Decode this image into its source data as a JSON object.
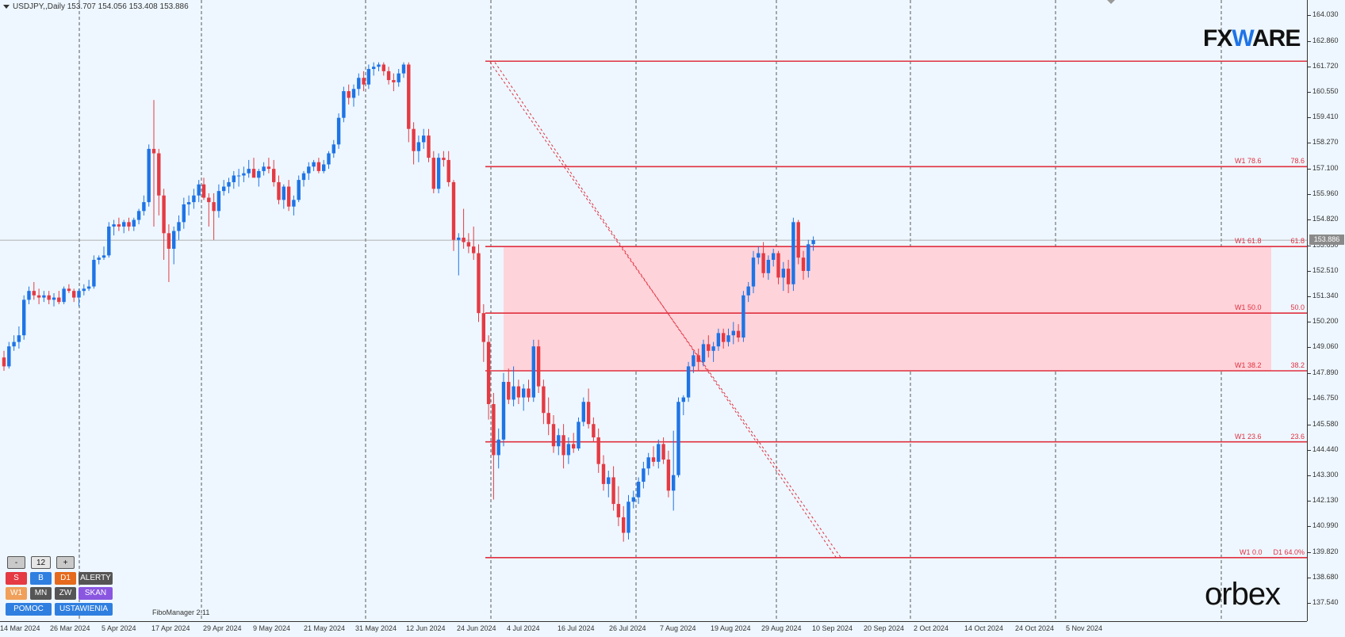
{
  "header": {
    "symbol_info": "USDJPY,,Daily  153.707 154.056 153.408 153.886"
  },
  "branding": {
    "fxware_pre": "FX",
    "fxware_w": "W",
    "fxware_post": "ARE",
    "orbex": "orbex",
    "indicator_name": "FiboManager 2.11"
  },
  "colors": {
    "background": "#eef7ff",
    "bull": "#1e74e6",
    "bear": "#e53a43",
    "fibo_line": "#e0303f",
    "fibo_zone": "#ffd3da",
    "grid": "#333333"
  },
  "control_panel": {
    "minus": "-",
    "count": "12",
    "plus": "+",
    "row2": [
      "S",
      "B",
      "D1",
      "ALERTY"
    ],
    "row3": [
      "W1",
      "MN",
      "ZW",
      "SKAN"
    ],
    "row4": [
      "POMOC",
      "USTAWIENIA"
    ]
  },
  "price_axis": {
    "ticks": [
      "164.030",
      "162.860",
      "161.720",
      "160.550",
      "159.410",
      "158.270",
      "157.100",
      "155.960",
      "154.820",
      "153.650",
      "152.510",
      "151.340",
      "150.200",
      "149.060",
      "147.890",
      "146.750",
      "145.580",
      "144.440",
      "143.300",
      "142.130",
      "140.990",
      "139.820",
      "138.680",
      "137.540"
    ],
    "current_price": "153.886"
  },
  "time_axis": {
    "labels": [
      "14 Mar 2024",
      "26 Mar 2024",
      "5 Apr 2024",
      "17 Apr 2024",
      "29 Apr 2024",
      "9 May 2024",
      "21 May 2024",
      "31 May 2024",
      "12 Jun 2024",
      "24 Jun 2024",
      "4 Jul 2024",
      "16 Jul 2024",
      "26 Jul 2024",
      "7 Aug 2024",
      "19 Aug 2024",
      "29 Aug 2024",
      "10 Sep 2024",
      "20 Sep 2024",
      "2 Oct 2024",
      "14 Oct 2024",
      "24 Oct 2024",
      "5 Nov 2024"
    ]
  },
  "fibo_levels": [
    {
      "level_label": "W1 78.6",
      "percent": "78.6",
      "price": 157.2
    },
    {
      "level_label": "W1 61.8",
      "percent": "61.8",
      "price": 153.6
    },
    {
      "level_label": "W1 50.0",
      "percent": "50.0",
      "price": 150.6
    },
    {
      "level_label": "W1 38.2",
      "percent": "38.2",
      "price": 148.0
    },
    {
      "level_label": "W1 23.6",
      "percent": "23.6",
      "price": 144.8
    },
    {
      "level_label": "W1 0.0",
      "percent": "D1 64.0%",
      "price": 139.58
    }
  ],
  "chart_data": {
    "type": "candlestick",
    "title": "USDJPY,,Daily",
    "ylim": [
      137.54,
      164.03
    ],
    "grid": "vertical dashed",
    "fibo_high": 161.95,
    "fibo_zone": [
      148.0,
      153.6
    ],
    "current_price": 153.886,
    "ohlc_legend": {
      "open": 153.707,
      "high": 154.056,
      "low": 153.408,
      "close": 153.886
    },
    "candles": [
      [
        148.6,
        148.9,
        148.0,
        148.2
      ],
      [
        148.2,
        149.3,
        148.1,
        149.1
      ],
      [
        149.1,
        149.6,
        148.9,
        149.3
      ],
      [
        149.3,
        150.0,
        149.0,
        149.6
      ],
      [
        149.6,
        151.4,
        149.4,
        151.2
      ],
      [
        151.2,
        151.8,
        151.0,
        151.6
      ],
      [
        151.6,
        152.0,
        151.2,
        151.4
      ],
      [
        151.4,
        151.7,
        151.0,
        151.3
      ],
      [
        151.3,
        151.6,
        151.1,
        151.4
      ],
      [
        151.4,
        151.6,
        151.0,
        151.2
      ],
      [
        151.2,
        151.5,
        150.9,
        151.3
      ],
      [
        151.3,
        151.6,
        151.0,
        151.1
      ],
      [
        151.1,
        151.8,
        151.0,
        151.7
      ],
      [
        151.7,
        151.9,
        151.5,
        151.6
      ],
      [
        151.6,
        151.7,
        151.1,
        151.3
      ],
      [
        151.3,
        151.7,
        150.9,
        151.6
      ],
      [
        151.6,
        151.9,
        151.4,
        151.7
      ],
      [
        151.7,
        152.1,
        151.6,
        151.8
      ],
      [
        151.8,
        153.2,
        151.7,
        153.0
      ],
      [
        153.0,
        153.2,
        152.8,
        153.1
      ],
      [
        153.1,
        153.6,
        153.0,
        153.2
      ],
      [
        153.2,
        154.7,
        153.1,
        154.5
      ],
      [
        154.5,
        154.8,
        154.1,
        154.6
      ],
      [
        154.6,
        154.9,
        154.3,
        154.5
      ],
      [
        154.5,
        154.8,
        154.2,
        154.7
      ],
      [
        154.7,
        154.9,
        154.3,
        154.5
      ],
      [
        154.5,
        154.9,
        154.3,
        154.8
      ],
      [
        154.8,
        155.3,
        154.6,
        155.2
      ],
      [
        155.2,
        155.9,
        155.0,
        155.6
      ],
      [
        155.6,
        158.2,
        155.4,
        158.0
      ],
      [
        158.0,
        160.2,
        154.5,
        157.8
      ],
      [
        157.8,
        158.0,
        155.0,
        155.9
      ],
      [
        155.9,
        156.2,
        153.0,
        154.2
      ],
      [
        154.2,
        154.6,
        152.0,
        153.5
      ],
      [
        153.5,
        154.5,
        152.8,
        154.3
      ],
      [
        154.3,
        155.0,
        153.9,
        154.7
      ],
      [
        154.7,
        155.8,
        154.4,
        155.5
      ],
      [
        155.5,
        155.9,
        155.0,
        155.6
      ],
      [
        155.6,
        156.2,
        155.3,
        155.9
      ],
      [
        155.9,
        156.6,
        155.6,
        156.4
      ],
      [
        156.4,
        156.7,
        155.7,
        155.8
      ],
      [
        155.8,
        156.0,
        154.5,
        155.6
      ],
      [
        155.6,
        156.0,
        153.9,
        155.2
      ],
      [
        155.2,
        156.4,
        154.9,
        156.1
      ],
      [
        156.1,
        156.6,
        155.9,
        156.3
      ],
      [
        156.3,
        156.7,
        156.0,
        156.5
      ],
      [
        156.5,
        157.0,
        156.2,
        156.8
      ],
      [
        156.8,
        157.1,
        156.3,
        156.8
      ],
      [
        156.8,
        157.2,
        156.5,
        156.9
      ],
      [
        156.9,
        157.5,
        156.7,
        157.1
      ],
      [
        157.1,
        157.6,
        156.8,
        156.7
      ],
      [
        156.7,
        157.1,
        156.3,
        157.0
      ],
      [
        157.0,
        157.4,
        156.8,
        157.2
      ],
      [
        157.2,
        157.6,
        156.9,
        157.1
      ],
      [
        157.1,
        157.5,
        156.3,
        156.5
      ],
      [
        156.5,
        156.8,
        155.5,
        155.7
      ],
      [
        155.7,
        156.4,
        155.3,
        156.3
      ],
      [
        156.3,
        156.6,
        155.2,
        155.4
      ],
      [
        155.4,
        155.9,
        155.0,
        155.7
      ],
      [
        155.7,
        156.8,
        155.6,
        156.6
      ],
      [
        156.6,
        157.0,
        156.3,
        156.9
      ],
      [
        156.9,
        157.4,
        156.6,
        157.2
      ],
      [
        157.2,
        157.5,
        157.0,
        157.4
      ],
      [
        157.4,
        157.6,
        156.9,
        157.0
      ],
      [
        157.0,
        157.5,
        156.9,
        157.3
      ],
      [
        157.3,
        157.9,
        157.1,
        157.8
      ],
      [
        157.8,
        158.4,
        157.6,
        158.2
      ],
      [
        158.2,
        159.6,
        158.0,
        159.4
      ],
      [
        159.4,
        160.8,
        159.2,
        160.6
      ],
      [
        160.6,
        160.9,
        160.0,
        160.3
      ],
      [
        160.3,
        160.9,
        159.9,
        160.7
      ],
      [
        160.7,
        161.4,
        160.4,
        161.2
      ],
      [
        161.2,
        161.5,
        160.6,
        160.9
      ],
      [
        160.9,
        161.8,
        160.7,
        161.6
      ],
      [
        161.6,
        161.9,
        161.3,
        161.7
      ],
      [
        161.7,
        161.9,
        161.5,
        161.8
      ],
      [
        161.8,
        161.9,
        161.3,
        161.5
      ],
      [
        161.5,
        161.7,
        160.9,
        161.1
      ],
      [
        161.1,
        161.4,
        160.6,
        161.0
      ],
      [
        161.0,
        161.6,
        160.8,
        161.4
      ],
      [
        161.4,
        161.9,
        161.2,
        161.8
      ],
      [
        161.8,
        161.9,
        158.3,
        158.9
      ],
      [
        158.9,
        159.2,
        157.3,
        157.9
      ],
      [
        157.9,
        158.6,
        157.4,
        158.3
      ],
      [
        158.3,
        158.9,
        158.0,
        158.6
      ],
      [
        158.6,
        158.9,
        157.4,
        157.6
      ],
      [
        157.6,
        157.9,
        156.0,
        156.2
      ],
      [
        156.2,
        157.8,
        156.0,
        157.6
      ],
      [
        157.6,
        157.9,
        157.2,
        157.5
      ],
      [
        157.5,
        157.9,
        156.3,
        156.5
      ],
      [
        156.5,
        156.6,
        153.4,
        153.9
      ],
      [
        153.9,
        154.2,
        152.3,
        154.0
      ],
      [
        154.0,
        155.3,
        153.5,
        153.8
      ],
      [
        153.8,
        154.2,
        153.3,
        153.6
      ],
      [
        153.6,
        154.5,
        153.0,
        153.3
      ],
      [
        153.3,
        153.7,
        150.2,
        150.6
      ],
      [
        150.6,
        151.0,
        148.4,
        149.3
      ],
      [
        149.3,
        149.6,
        145.8,
        146.5
      ],
      [
        146.5,
        147.0,
        142.2,
        144.2
      ],
      [
        144.2,
        145.4,
        143.6,
        144.9
      ],
      [
        144.9,
        147.9,
        144.6,
        147.5
      ],
      [
        147.5,
        148.1,
        146.5,
        146.7
      ],
      [
        146.7,
        148.2,
        146.4,
        147.3
      ],
      [
        147.3,
        147.6,
        146.5,
        146.8
      ],
      [
        146.8,
        147.4,
        146.2,
        147.2
      ],
      [
        147.2,
        147.6,
        146.6,
        146.8
      ],
      [
        146.8,
        149.4,
        146.6,
        149.1
      ],
      [
        149.1,
        149.4,
        147.0,
        147.3
      ],
      [
        147.3,
        147.6,
        145.6,
        146.1
      ],
      [
        146.1,
        146.8,
        145.1,
        145.6
      ],
      [
        145.6,
        146.0,
        144.3,
        144.6
      ],
      [
        144.6,
        145.4,
        144.2,
        145.1
      ],
      [
        145.1,
        145.6,
        143.6,
        144.2
      ],
      [
        144.2,
        145.0,
        143.8,
        144.7
      ],
      [
        144.7,
        145.2,
        144.3,
        144.5
      ],
      [
        144.5,
        145.9,
        144.4,
        145.7
      ],
      [
        145.7,
        146.8,
        145.5,
        146.6
      ],
      [
        146.6,
        147.2,
        145.4,
        145.6
      ],
      [
        145.6,
        145.9,
        144.8,
        145.0
      ],
      [
        145.0,
        145.4,
        143.4,
        143.8
      ],
      [
        143.8,
        144.2,
        142.6,
        142.9
      ],
      [
        142.9,
        143.5,
        142.3,
        143.2
      ],
      [
        143.2,
        143.7,
        141.7,
        142.0
      ],
      [
        142.0,
        142.8,
        141.0,
        141.4
      ],
      [
        141.4,
        141.9,
        140.3,
        140.7
      ],
      [
        140.7,
        142.4,
        140.4,
        142.1
      ],
      [
        142.1,
        142.6,
        141.8,
        142.3
      ],
      [
        142.3,
        143.2,
        142.0,
        143.0
      ],
      [
        143.0,
        143.9,
        142.7,
        143.6
      ],
      [
        143.6,
        144.3,
        143.3,
        144.1
      ],
      [
        144.1,
        144.6,
        143.7,
        143.9
      ],
      [
        143.9,
        144.9,
        143.6,
        144.7
      ],
      [
        144.7,
        145.0,
        143.8,
        144.0
      ],
      [
        144.0,
        144.4,
        142.3,
        142.6
      ],
      [
        142.6,
        145.3,
        141.7,
        143.3
      ],
      [
        143.3,
        146.8,
        143.2,
        146.6
      ],
      [
        146.6,
        146.9,
        146.0,
        146.8
      ],
      [
        146.8,
        148.4,
        146.6,
        148.2
      ],
      [
        148.2,
        148.9,
        147.9,
        148.7
      ],
      [
        148.7,
        149.0,
        148.0,
        148.4
      ],
      [
        148.4,
        149.4,
        148.2,
        149.2
      ],
      [
        149.2,
        149.6,
        148.6,
        148.9
      ],
      [
        148.9,
        149.3,
        148.4,
        149.1
      ],
      [
        149.1,
        149.9,
        148.9,
        149.7
      ],
      [
        149.7,
        149.9,
        149.0,
        149.3
      ],
      [
        149.3,
        149.9,
        149.1,
        149.6
      ],
      [
        149.6,
        150.2,
        149.2,
        149.8
      ],
      [
        149.8,
        150.1,
        149.3,
        149.5
      ],
      [
        149.5,
        151.6,
        149.3,
        151.4
      ],
      [
        151.4,
        152.0,
        151.1,
        151.8
      ],
      [
        151.8,
        153.4,
        151.5,
        153.1
      ],
      [
        153.1,
        153.6,
        152.8,
        153.3
      ],
      [
        153.3,
        153.8,
        152.2,
        152.4
      ],
      [
        152.4,
        153.2,
        152.1,
        153.0
      ],
      [
        153.0,
        153.5,
        152.7,
        153.3
      ],
      [
        153.3,
        153.4,
        151.9,
        152.2
      ],
      [
        152.2,
        152.9,
        151.6,
        152.6
      ],
      [
        152.6,
        153.0,
        151.5,
        151.9
      ],
      [
        151.9,
        154.9,
        151.6,
        154.7
      ],
      [
        154.7,
        154.8,
        152.8,
        153.1
      ],
      [
        153.1,
        153.4,
        152.1,
        152.5
      ],
      [
        152.5,
        153.9,
        152.2,
        153.7
      ],
      [
        153.707,
        154.056,
        153.408,
        153.886
      ]
    ]
  }
}
